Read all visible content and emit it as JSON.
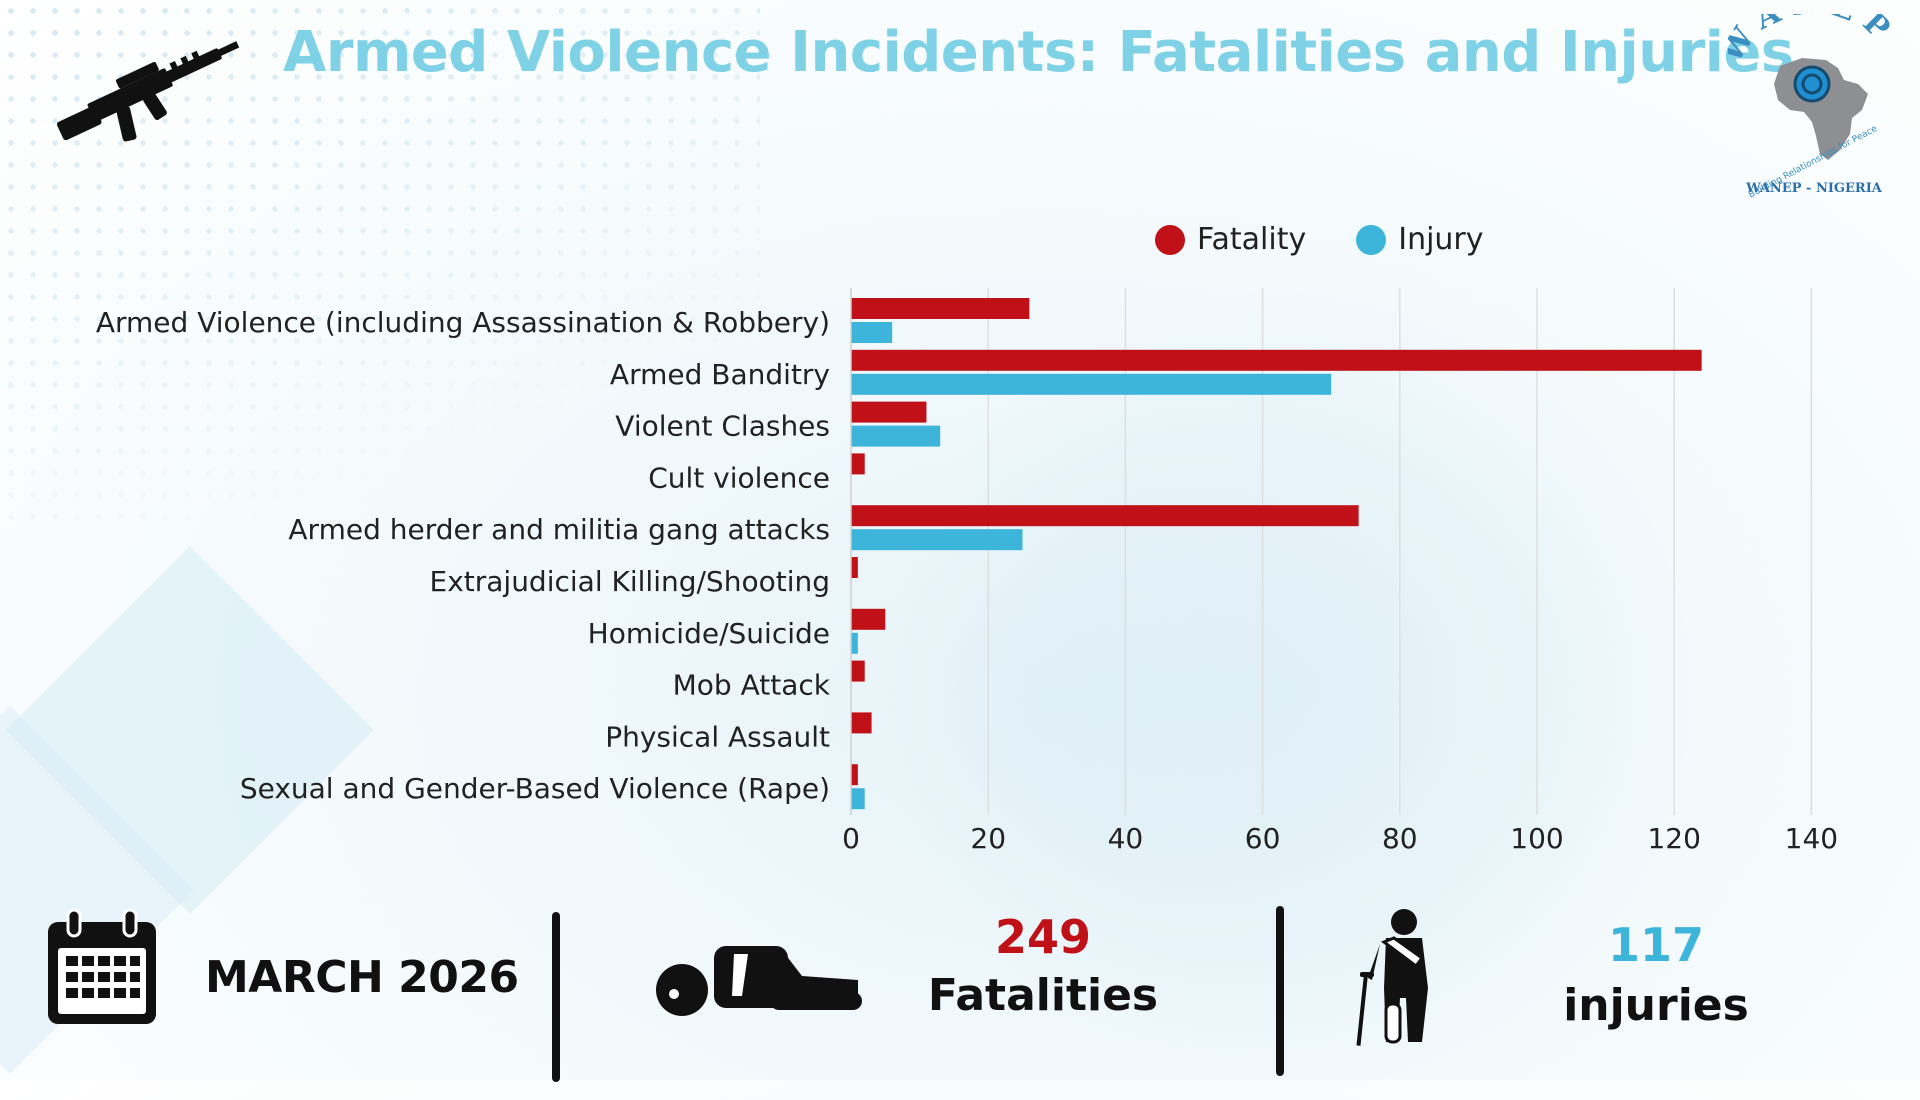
{
  "title": "Armed Violence Incidents: Fatalities and Injuries",
  "logo": {
    "arc_text": "WANEP",
    "tagline": "Building Relationships for Peace",
    "caption": "WANEP - NIGERIA"
  },
  "colors": {
    "fatality": "#c01018",
    "injury": "#3db5da",
    "title": "#7fd1e6"
  },
  "chart_data": {
    "type": "bar",
    "orientation": "horizontal",
    "title": "",
    "xlabel": "",
    "ylabel": "",
    "xlim": [
      0,
      140
    ],
    "x_ticks": [
      0,
      20,
      40,
      60,
      80,
      100,
      120,
      140
    ],
    "grid": true,
    "legend_position": "top-right",
    "categories": [
      "Armed Violence (including Assassination & Robbery)",
      "Armed Banditry",
      "Violent Clashes",
      "Cult violence",
      "Armed herder and militia gang attacks",
      "Extrajudicial Killing/Shooting",
      "Homicide/Suicide",
      "Mob Attack",
      "Physical Assault",
      "Sexual and Gender-Based Violence (Rape)"
    ],
    "series": [
      {
        "name": "Fatality",
        "color": "#c01018",
        "values": [
          26,
          124,
          11,
          2,
          74,
          1,
          5,
          2,
          3,
          1
        ]
      },
      {
        "name": "Injury",
        "color": "#3db5da",
        "values": [
          6,
          70,
          13,
          0,
          25,
          0,
          1,
          0,
          0,
          2
        ]
      }
    ]
  },
  "footer": {
    "month": "MARCH 2026",
    "fatalities_count": "249",
    "fatalities_label": "Fatalities",
    "injuries_count": "117",
    "injuries_label": "injuries"
  }
}
